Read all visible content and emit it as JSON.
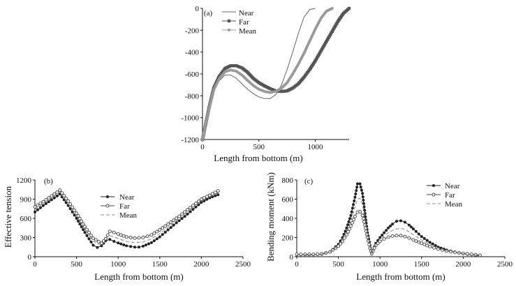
{
  "chart_data": [
    {
      "panel": "(a)",
      "type": "line",
      "xlabel": "Length from bottom (m)",
      "ylabel": "",
      "xlim": [
        0,
        1300
      ],
      "ylim": [
        -1200,
        0
      ],
      "xticks": [
        "0",
        "500",
        "1000"
      ],
      "yticks": [
        "-1200",
        "-1000",
        "-800",
        "-600",
        "-400",
        "-200",
        "0"
      ],
      "legend": "top-left",
      "series": [
        {
          "name": "Near",
          "color": "#666666",
          "marker": "none",
          "x": [
            0,
            30,
            60,
            100,
            150,
            200,
            250,
            300,
            350,
            400,
            450,
            500,
            550,
            600,
            650,
            700,
            750,
            800,
            850,
            900,
            950,
            1000
          ],
          "y": [
            -1200,
            -1050,
            -920,
            -760,
            -660,
            -610,
            -610,
            -640,
            -690,
            -740,
            -780,
            -810,
            -825,
            -825,
            -790,
            -700,
            -560,
            -400,
            -230,
            -80,
            -10,
            0
          ]
        },
        {
          "name": "Far",
          "color": "#555555",
          "marker": "square",
          "x": [
            0,
            30,
            60,
            100,
            150,
            200,
            250,
            300,
            350,
            400,
            450,
            500,
            550,
            600,
            650,
            700,
            750,
            800,
            850,
            900,
            950,
            1000,
            1050,
            1100,
            1150,
            1200,
            1250,
            1300
          ],
          "y": [
            -1200,
            -1050,
            -900,
            -730,
            -620,
            -550,
            -525,
            -525,
            -545,
            -585,
            -640,
            -680,
            -710,
            -735,
            -755,
            -760,
            -755,
            -730,
            -690,
            -630,
            -560,
            -480,
            -390,
            -300,
            -210,
            -120,
            -45,
            0
          ]
        },
        {
          "name": "Mean",
          "color": "#999999",
          "marker": "dot",
          "x": [
            0,
            30,
            60,
            100,
            150,
            200,
            250,
            300,
            350,
            400,
            450,
            500,
            550,
            600,
            650,
            700,
            750,
            800,
            850,
            900,
            950,
            1000,
            1050,
            1100,
            1150
          ],
          "y": [
            -1200,
            -1050,
            -910,
            -745,
            -640,
            -580,
            -565,
            -575,
            -610,
            -660,
            -705,
            -740,
            -760,
            -770,
            -760,
            -730,
            -680,
            -600,
            -510,
            -410,
            -300,
            -190,
            -90,
            -25,
            0
          ]
        }
      ]
    },
    {
      "panel": "(b)",
      "type": "line",
      "xlabel": "Length from bottom (m)",
      "ylabel": "Effective tension",
      "xlim": [
        0,
        2500
      ],
      "ylim": [
        0,
        1200
      ],
      "xticks": [
        "0",
        "500",
        "1000",
        "1500",
        "2000",
        "2500"
      ],
      "yticks": [
        "0",
        "300",
        "600",
        "900",
        "1200"
      ],
      "legend": "top-center",
      "series": [
        {
          "name": "Near",
          "color": "#222222",
          "marker": "dot",
          "x": [
            0,
            100,
            200,
            300,
            400,
            500,
            600,
            700,
            750,
            800,
            850,
            900,
            950,
            1000,
            1100,
            1200,
            1250,
            1300,
            1400,
            1500,
            1600,
            1700,
            1800,
            1900,
            2000,
            2100,
            2200
          ],
          "y": [
            700,
            800,
            890,
            980,
            800,
            600,
            380,
            180,
            145,
            170,
            250,
            270,
            240,
            215,
            170,
            150,
            150,
            165,
            220,
            310,
            420,
            530,
            630,
            740,
            850,
            920,
            970
          ]
        },
        {
          "name": "Far",
          "color": "#444444",
          "marker": "circle",
          "x": [
            0,
            100,
            200,
            300,
            400,
            500,
            600,
            700,
            800,
            850,
            900,
            950,
            1000,
            1100,
            1200,
            1300,
            1400,
            1500,
            1600,
            1700,
            1800,
            1900,
            2000,
            2100,
            2200
          ],
          "y": [
            780,
            860,
            950,
            1040,
            870,
            680,
            470,
            290,
            210,
            280,
            395,
            380,
            355,
            310,
            290,
            300,
            340,
            420,
            510,
            600,
            700,
            800,
            900,
            960,
            1030
          ]
        },
        {
          "name": "Mean",
          "color": "#888888",
          "marker": "dash",
          "x": [
            0,
            100,
            200,
            300,
            400,
            500,
            600,
            700,
            800,
            850,
            900,
            950,
            1000,
            1100,
            1200,
            1300,
            1400,
            1500,
            1600,
            1700,
            1800,
            1900,
            2000,
            2100,
            2200
          ],
          "y": [
            740,
            830,
            920,
            1010,
            830,
            640,
            430,
            240,
            180,
            260,
            330,
            310,
            285,
            240,
            220,
            230,
            280,
            360,
            460,
            560,
            660,
            770,
            870,
            940,
            1000
          ]
        }
      ]
    },
    {
      "panel": "(c)",
      "type": "line",
      "xlabel": "Length from bottom (m)",
      "ylabel": "Bending moment (kNm)",
      "xlim": [
        0,
        2500
      ],
      "ylim": [
        0,
        800
      ],
      "xticks": [
        "0",
        "500",
        "1000",
        "1500",
        "2000",
        "2500"
      ],
      "yticks": [
        "0",
        "200",
        "400",
        "600",
        "800"
      ],
      "legend": "top-right",
      "series": [
        {
          "name": "Near",
          "color": "#222222",
          "marker": "dot",
          "x": [
            0,
            100,
            200,
            300,
            400,
            500,
            550,
            600,
            650,
            700,
            730,
            760,
            790,
            820,
            850,
            880,
            900,
            950,
            1000,
            1050,
            1100,
            1150,
            1200,
            1250,
            1300,
            1350,
            1400,
            1500,
            1600,
            1700,
            1800,
            1900,
            2000,
            2100,
            2200
          ],
          "y": [
            20,
            20,
            20,
            25,
            50,
            130,
            200,
            300,
            430,
            620,
            760,
            760,
            660,
            450,
            250,
            120,
            30,
            140,
            200,
            250,
            300,
            340,
            370,
            375,
            360,
            330,
            290,
            210,
            150,
            100,
            70,
            50,
            30,
            20,
            10
          ]
        },
        {
          "name": "Far",
          "color": "#444444",
          "marker": "circle",
          "x": [
            0,
            100,
            200,
            300,
            400,
            500,
            550,
            600,
            650,
            700,
            730,
            760,
            790,
            820,
            850,
            880,
            900,
            950,
            1000,
            1050,
            1100,
            1150,
            1200,
            1250,
            1300,
            1350,
            1400,
            1500,
            1600,
            1700,
            1800,
            1900,
            2000,
            2100,
            2200
          ],
          "y": [
            25,
            25,
            25,
            30,
            50,
            110,
            160,
            230,
            320,
            420,
            465,
            470,
            430,
            330,
            200,
            90,
            30,
            120,
            160,
            185,
            205,
            215,
            220,
            220,
            210,
            195,
            175,
            140,
            105,
            80,
            60,
            45,
            35,
            25,
            15
          ]
        },
        {
          "name": "Mean",
          "color": "#888888",
          "marker": "dash",
          "x": [
            0,
            100,
            200,
            300,
            400,
            500,
            550,
            600,
            650,
            700,
            730,
            760,
            790,
            820,
            850,
            880,
            900,
            950,
            1000,
            1050,
            1100,
            1150,
            1200,
            1250,
            1300,
            1350,
            1400,
            1500,
            1600,
            1700,
            1800,
            1900,
            2000,
            2100,
            2200
          ],
          "y": [
            22,
            22,
            22,
            28,
            50,
            120,
            180,
            260,
            370,
            520,
            600,
            610,
            540,
            390,
            220,
            100,
            30,
            130,
            180,
            215,
            250,
            275,
            290,
            295,
            285,
            260,
            230,
            175,
            130,
            90,
            65,
            48,
            32,
            22,
            12
          ]
        }
      ]
    }
  ]
}
